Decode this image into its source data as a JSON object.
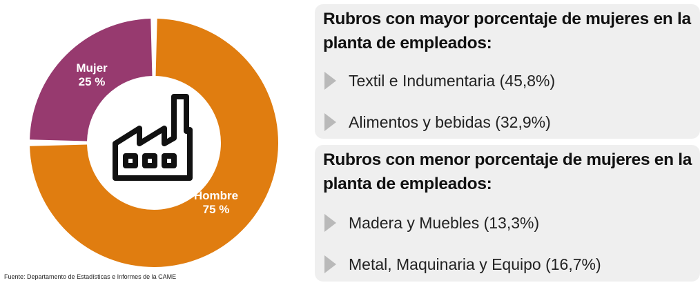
{
  "chart_data": {
    "type": "pie",
    "style": "donut",
    "categories": [
      "Mujer",
      "Hombre"
    ],
    "values": [
      25,
      75
    ],
    "labels": [
      "25 %",
      "75 %"
    ],
    "colors": [
      "#973a6f",
      "#e07d10"
    ],
    "center_icon": "factory-icon"
  },
  "donut": {
    "mujer": {
      "name": "Mujer",
      "pct": "25 %"
    },
    "hombre": {
      "name": "Hombre",
      "pct": "75 %"
    }
  },
  "source": "Fuente: Departamento de Estadísticas e Informes de la CAME",
  "panels": [
    {
      "title": "Rubros con mayor porcentaje de mujeres en la planta de empleados:",
      "items": [
        "Textil e Indumentaria (45,8%)",
        "Alimentos y bebidas (32,9%)"
      ]
    },
    {
      "title": "Rubros con menor porcentaje de mujeres en la planta de empleados:",
      "items": [
        "Madera y Muebles (13,3%)",
        "Metal, Maquinaria y Equipo (16,7%)"
      ]
    }
  ],
  "colors": {
    "panel_bg": "#efefef",
    "bullet": "#b9b9b9"
  }
}
